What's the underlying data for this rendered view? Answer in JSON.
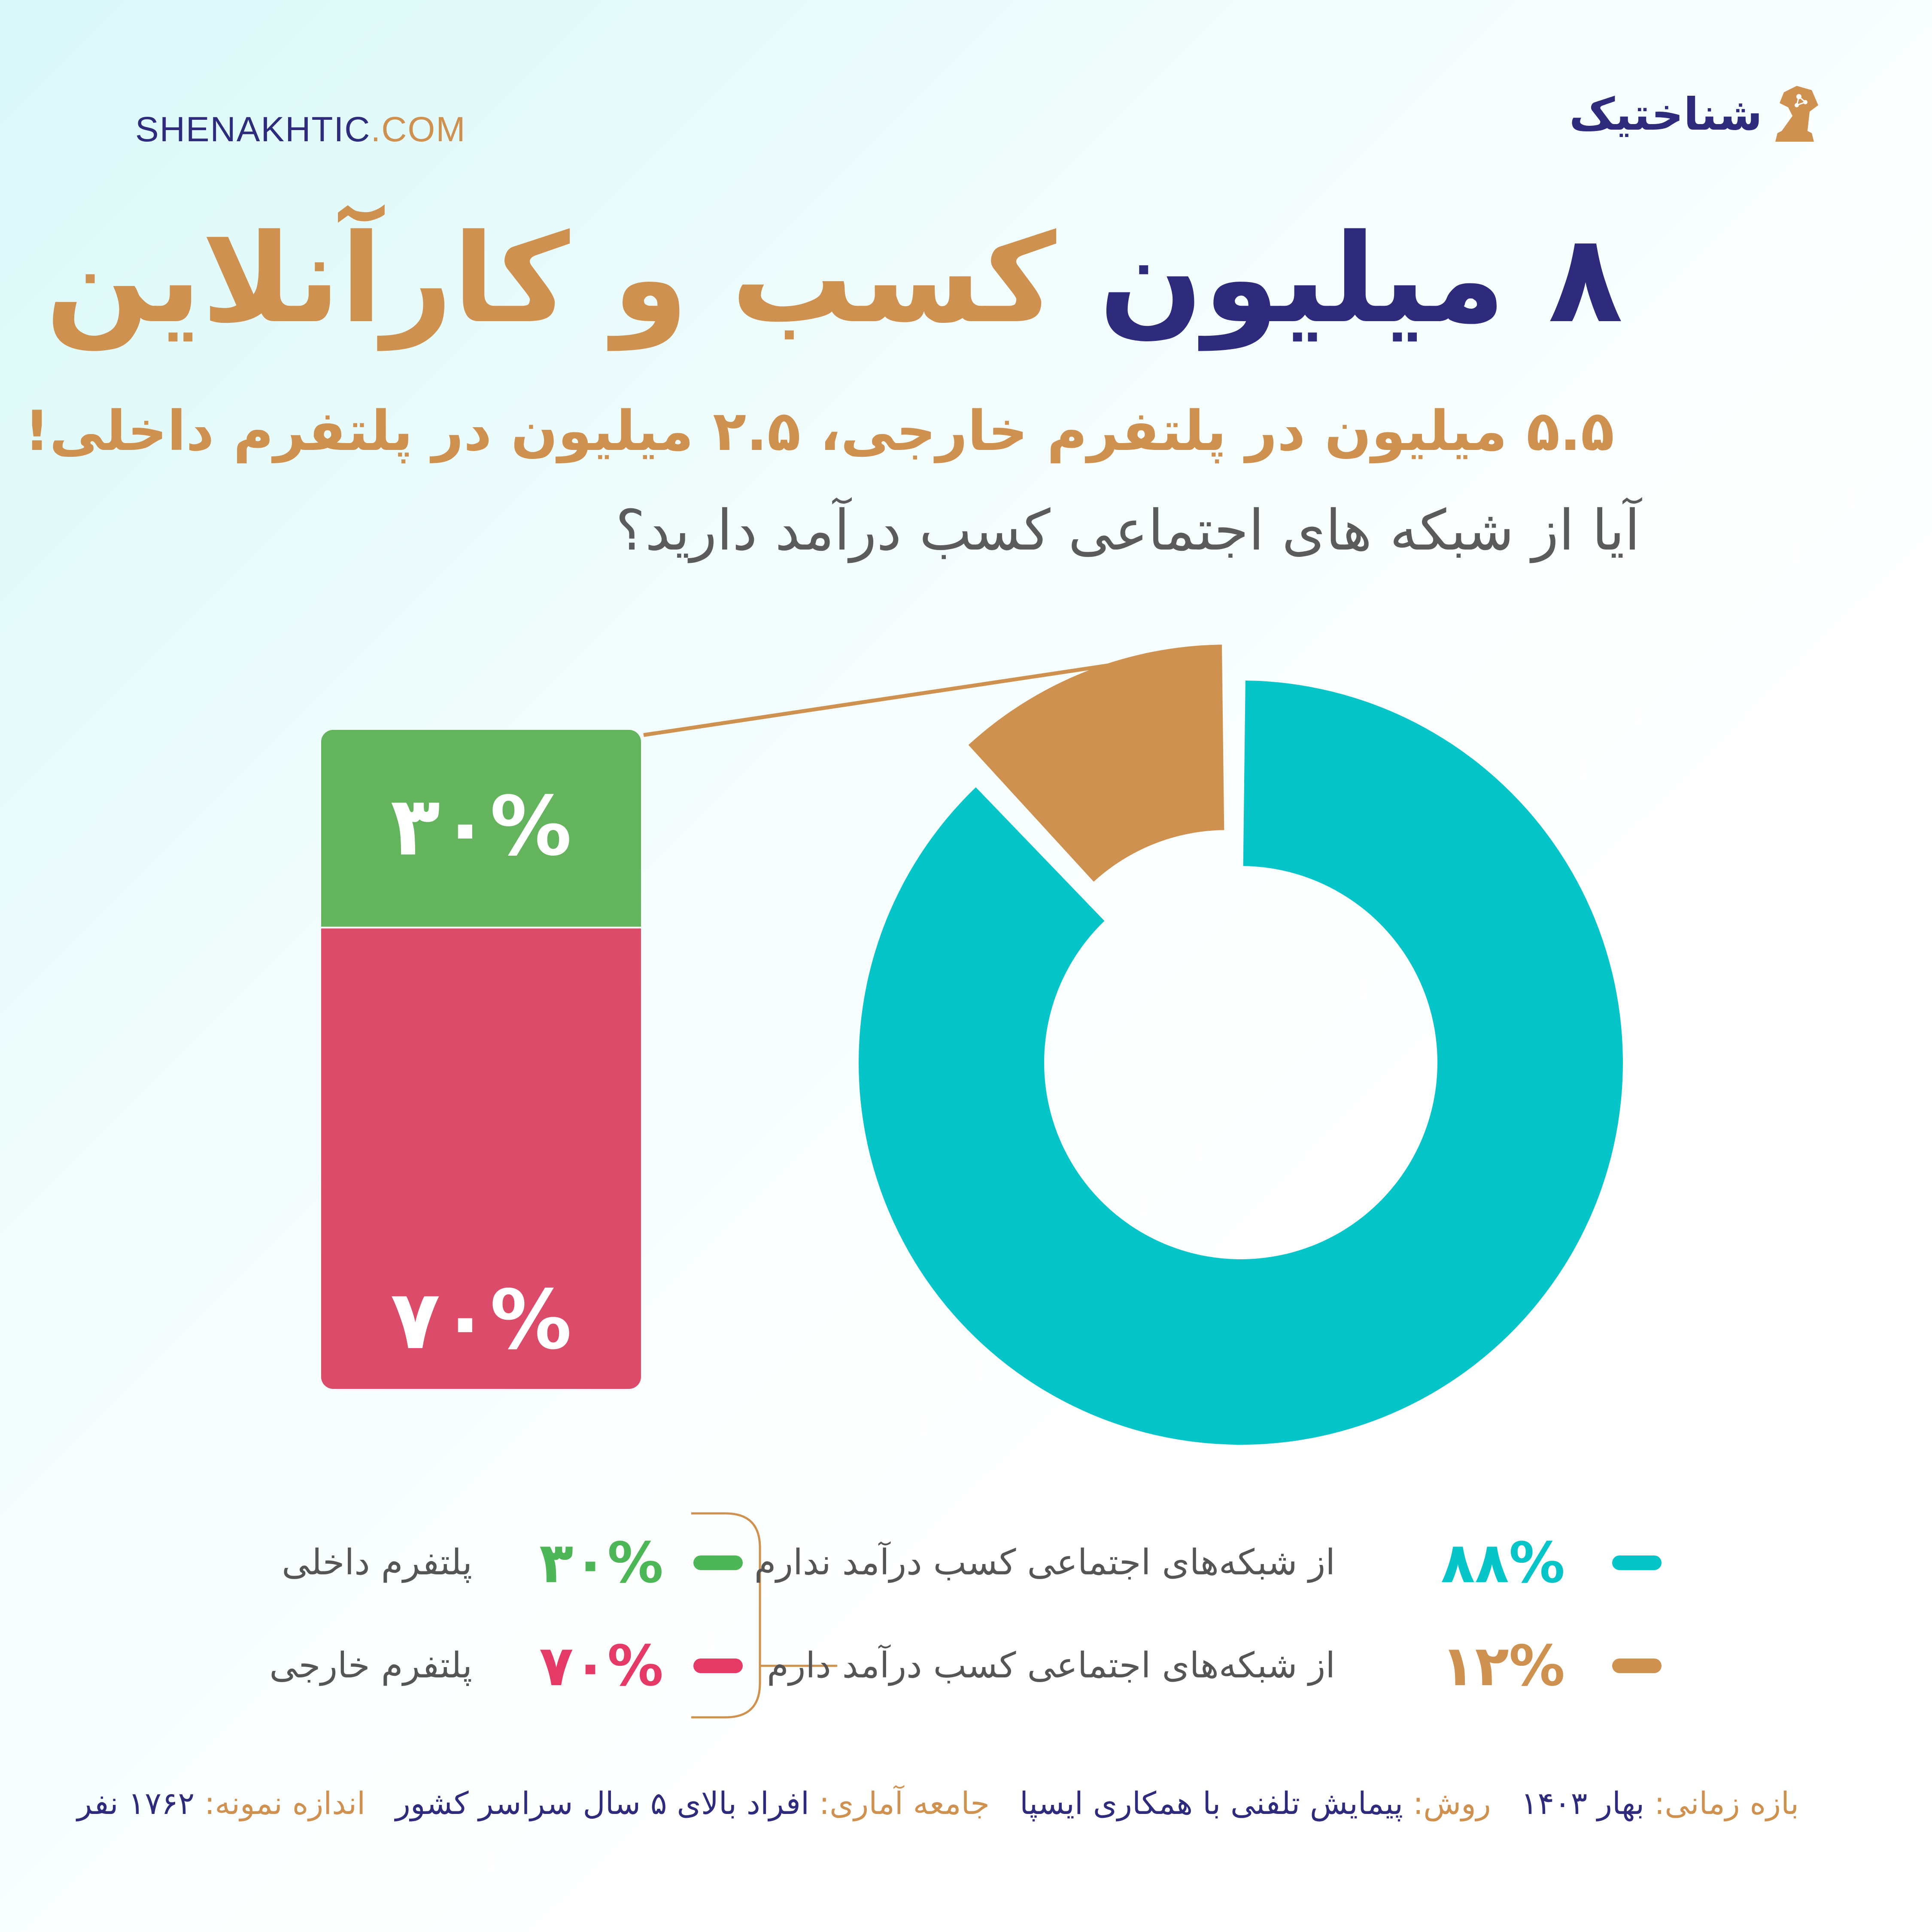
{
  "header": {
    "site_url_main": "SHENAKHTIC",
    "site_url_tld": ".COM",
    "brand_name": "شناختیک"
  },
  "title": {
    "number": "۸ میلیون",
    "rest": "کسب و کارآنلاین"
  },
  "subtitle": "۵.۵ میلیون در پلتفرم خارجی، ۲.۵ میلیون در پلتفرم داخلی!",
  "question": "آیا از شبکه های اجتماعی کسب درآمد دارید؟",
  "colors": {
    "navy": "#2e2a7c",
    "gold": "#cf914f",
    "teal": "#06c5c9",
    "green": "#64b45d",
    "red": "#dc4c6a"
  },
  "chart_data": [
    {
      "type": "pie",
      "style": "donut",
      "slices": [
        {
          "label": "از شبکه‌های اجتماعی کسب درآمد ندارم",
          "value": 88,
          "pct_label": "۸۸%",
          "color": "#06c5c9"
        },
        {
          "label": "از شبکه‌های اجتماعی کسب درآمد دارم",
          "value": 12,
          "pct_label": "۱۲%",
          "color": "#cf914f"
        }
      ]
    },
    {
      "type": "bar",
      "style": "stacked-100",
      "segments": [
        {
          "label": "پلتفرم داخلی",
          "value": 30,
          "pct_label": "۳۰%",
          "color": "#64b45d"
        },
        {
          "label": "پلتفرم خارجی",
          "value": 70,
          "pct_label": "۷۰%",
          "color": "#dc4c6a"
        }
      ]
    }
  ],
  "footer": [
    {
      "key": "بازه زمانی:",
      "value": "بهار ۱۴۰۳"
    },
    {
      "key": "روش:",
      "value": "پیمایش تلفنی با همکاری ایسپا"
    },
    {
      "key": "جامعه آماری:",
      "value": "افراد بالای ۵ سال سراسر کشور"
    },
    {
      "key": "اندازه نمونه:",
      "value": "۱۷۶۲ نفر"
    }
  ]
}
